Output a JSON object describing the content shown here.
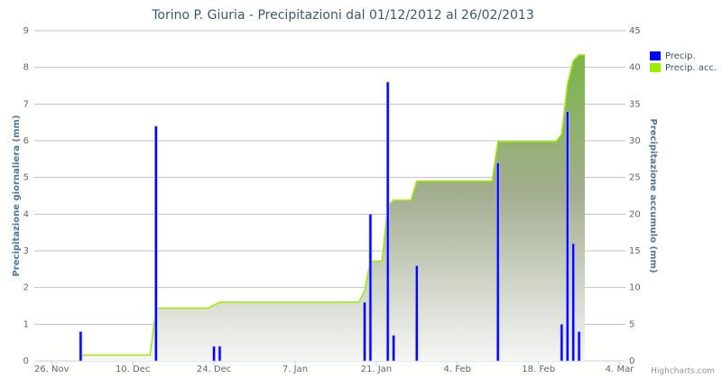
{
  "chart_data": {
    "type": "bar-area",
    "title": "Torino P. Giuria - Precipitazioni dal 01/12/2012 al 26/02/2013",
    "y_label": "Precipitazione giornaliera (mm)",
    "y2_label": "Precipitazione accumulo (mm)",
    "credits": "Highcharts.com",
    "legend": "top-right",
    "grid": true,
    "x": [
      "2012-12-01",
      "2012-12-02",
      "2012-12-03",
      "2012-12-04",
      "2012-12-05",
      "2012-12-06",
      "2012-12-07",
      "2012-12-08",
      "2012-12-09",
      "2012-12-10",
      "2012-12-11",
      "2012-12-12",
      "2012-12-13",
      "2012-12-14",
      "2012-12-15",
      "2012-12-16",
      "2012-12-17",
      "2012-12-18",
      "2012-12-19",
      "2012-12-20",
      "2012-12-21",
      "2012-12-22",
      "2012-12-23",
      "2012-12-24",
      "2012-12-25",
      "2012-12-26",
      "2012-12-27",
      "2012-12-28",
      "2012-12-29",
      "2012-12-30",
      "2012-12-31",
      "2013-01-01",
      "2013-01-02",
      "2013-01-03",
      "2013-01-04",
      "2013-01-05",
      "2013-01-06",
      "2013-01-07",
      "2013-01-08",
      "2013-01-09",
      "2013-01-10",
      "2013-01-11",
      "2013-01-12",
      "2013-01-13",
      "2013-01-14",
      "2013-01-15",
      "2013-01-16",
      "2013-01-17",
      "2013-01-18",
      "2013-01-19",
      "2013-01-20",
      "2013-01-21",
      "2013-01-22",
      "2013-01-23",
      "2013-01-24",
      "2013-01-25",
      "2013-01-26",
      "2013-01-27",
      "2013-01-28",
      "2013-01-29",
      "2013-01-30",
      "2013-01-31",
      "2013-02-01",
      "2013-02-02",
      "2013-02-03",
      "2013-02-04",
      "2013-02-05",
      "2013-02-06",
      "2013-02-07",
      "2013-02-08",
      "2013-02-09",
      "2013-02-10",
      "2013-02-11",
      "2013-02-12",
      "2013-02-13",
      "2013-02-14",
      "2013-02-15",
      "2013-02-16",
      "2013-02-17",
      "2013-02-18",
      "2013-02-19",
      "2013-02-20",
      "2013-02-21",
      "2013-02-22",
      "2013-02-23",
      "2013-02-24",
      "2013-02-25",
      "2013-02-26"
    ],
    "series": [
      {
        "name": "Precip.",
        "color": "#0000ff",
        "kind": "bar",
        "values": [
          0.8,
          0,
          0,
          0,
          0,
          0,
          0,
          0,
          0,
          0,
          0,
          0,
          0,
          6.4,
          0,
          0,
          0,
          0,
          0,
          0,
          0,
          0,
          0,
          0.4,
          0.4,
          0,
          0,
          0,
          0,
          0,
          0,
          0,
          0,
          0,
          0,
          0,
          0,
          0,
          0,
          0,
          0,
          0,
          0,
          0,
          0,
          0,
          0,
          0,
          0,
          1.6,
          4.0,
          0,
          0,
          7.6,
          0.7,
          0,
          0,
          0,
          2.6,
          0,
          0,
          0,
          0,
          0,
          0,
          0,
          0,
          0,
          0,
          0,
          0,
          0,
          5.4,
          0,
          0,
          0,
          0,
          0,
          0,
          0,
          0,
          0,
          0,
          1.0,
          6.8,
          3.2,
          0.8,
          0
        ]
      },
      {
        "name": "Precip. acc.",
        "color": "#99ee00",
        "kind": "area",
        "axis": "y2",
        "values": [
          0.8,
          0.8,
          0.8,
          0.8,
          0.8,
          0.8,
          0.8,
          0.8,
          0.8,
          0.8,
          0.8,
          0.8,
          0.8,
          7.2,
          7.2,
          7.2,
          7.2,
          7.2,
          7.2,
          7.2,
          7.2,
          7.2,
          7.2,
          7.6,
          8.0,
          8.0,
          8.0,
          8.0,
          8.0,
          8.0,
          8.0,
          8.0,
          8.0,
          8.0,
          8.0,
          8.0,
          8.0,
          8.0,
          8.0,
          8.0,
          8.0,
          8.0,
          8.0,
          8.0,
          8.0,
          8.0,
          8.0,
          8.0,
          8.0,
          9.6,
          13.6,
          13.6,
          13.6,
          21.2,
          21.9,
          21.9,
          21.9,
          21.9,
          24.5,
          24.5,
          24.5,
          24.5,
          24.5,
          24.5,
          24.5,
          24.5,
          24.5,
          24.5,
          24.5,
          24.5,
          24.5,
          24.5,
          29.9,
          29.9,
          29.9,
          29.9,
          29.9,
          29.9,
          29.9,
          29.9,
          29.9,
          29.9,
          29.9,
          30.9,
          37.7,
          40.9,
          41.7,
          41.7
        ]
      }
    ],
    "xlim": [
      "2012-11-23",
      "2013-03-05"
    ],
    "xticks": [
      {
        "value": "2012-11-26",
        "label": "26. Nov"
      },
      {
        "value": "2012-12-10",
        "label": "10. Dec"
      },
      {
        "value": "2012-12-24",
        "label": "24. Dec"
      },
      {
        "value": "2013-01-07",
        "label": "7. Jan"
      },
      {
        "value": "2013-01-21",
        "label": "21. Jan"
      },
      {
        "value": "2013-02-04",
        "label": "4. Feb"
      },
      {
        "value": "2013-02-18",
        "label": "18. Feb"
      },
      {
        "value": "2013-03-04",
        "label": "4. Mar"
      }
    ],
    "ylim": [
      0,
      9
    ],
    "yticks": [
      0,
      1,
      2,
      3,
      4,
      5,
      6,
      7,
      8,
      9
    ],
    "y2lim": [
      0,
      45
    ],
    "y2ticks": [
      0,
      5,
      10,
      15,
      20,
      25,
      30,
      35,
      40,
      45
    ]
  }
}
